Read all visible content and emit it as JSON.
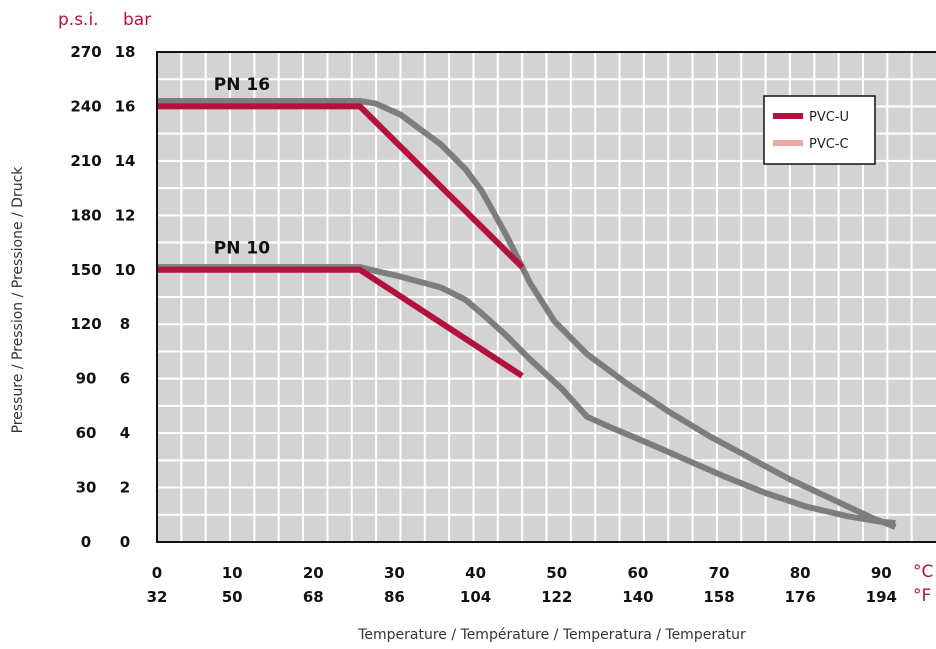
{
  "chart_data": {
    "type": "line",
    "units": {
      "left_psi": "p.s.i.",
      "left_bar": "bar",
      "bottom_c": "°C",
      "bottom_f": "°F"
    },
    "ylabel": "Pressure / Pression / Pressione / Druck",
    "xlabel": "Temperature / Température / Temperatura / Temperatur",
    "x_ticks_c": [
      "0",
      "10",
      "20",
      "30",
      "40",
      "50",
      "60",
      "70",
      "80",
      "90"
    ],
    "x_ticks_f": [
      "32",
      "50",
      "68",
      "86",
      "104",
      "122",
      "140",
      "158",
      "176",
      "194"
    ],
    "y_ticks_bar": [
      "0",
      "2",
      "4",
      "6",
      "8",
      "10",
      "12",
      "14",
      "16",
      "18"
    ],
    "y_ticks_psi": [
      "0",
      "30",
      "60",
      "90",
      "120",
      "150",
      "180",
      "210",
      "240",
      "270"
    ],
    "xlim": [
      0,
      96
    ],
    "ylim": [
      0,
      18
    ],
    "grid": true,
    "legend_position": "top-right",
    "group_labels": [
      {
        "text": "PN 16",
        "x": 7,
        "y": 16.6
      },
      {
        "text": "PN 10",
        "x": 7,
        "y": 10.6
      }
    ],
    "legend": [
      {
        "name": "PVC-U",
        "color": "#b3123f"
      },
      {
        "name": "PVC-C",
        "color": "#e5aca2"
      }
    ],
    "series": [
      {
        "material": "PVC-U",
        "group": "PN 16",
        "color": "#b3123f",
        "x": [
          0,
          25,
          45
        ],
        "y": [
          16,
          16,
          10.1
        ]
      },
      {
        "material": "PVC-U",
        "group": "PN 10",
        "color": "#b3123f",
        "x": [
          0,
          25,
          45
        ],
        "y": [
          10,
          10,
          6.1
        ]
      },
      {
        "material": "",
        "group": "PN 16",
        "color": "#7d7d7d",
        "x": [
          0,
          25,
          27,
          30,
          35,
          38,
          40,
          43,
          46,
          49,
          53,
          58,
          63,
          68,
          73,
          78,
          83,
          88,
          91
        ],
        "y": [
          16.2,
          16.2,
          16.1,
          15.7,
          14.6,
          13.7,
          12.9,
          11.3,
          9.5,
          8.1,
          6.9,
          5.8,
          4.8,
          3.9,
          3.1,
          2.3,
          1.6,
          0.9,
          0.55
        ]
      },
      {
        "material": "",
        "group": "PN 10",
        "color": "#7d7d7d",
        "x": [
          0,
          25,
          27,
          30,
          35,
          38,
          40,
          43,
          46,
          50,
          53,
          56,
          60,
          65,
          70,
          75,
          80,
          85,
          89,
          91
        ],
        "y": [
          10.1,
          10.1,
          9.95,
          9.75,
          9.35,
          8.9,
          8.4,
          7.6,
          6.7,
          5.6,
          4.6,
          4.2,
          3.7,
          3.05,
          2.4,
          1.8,
          1.3,
          0.95,
          0.75,
          0.7
        ]
      }
    ]
  }
}
